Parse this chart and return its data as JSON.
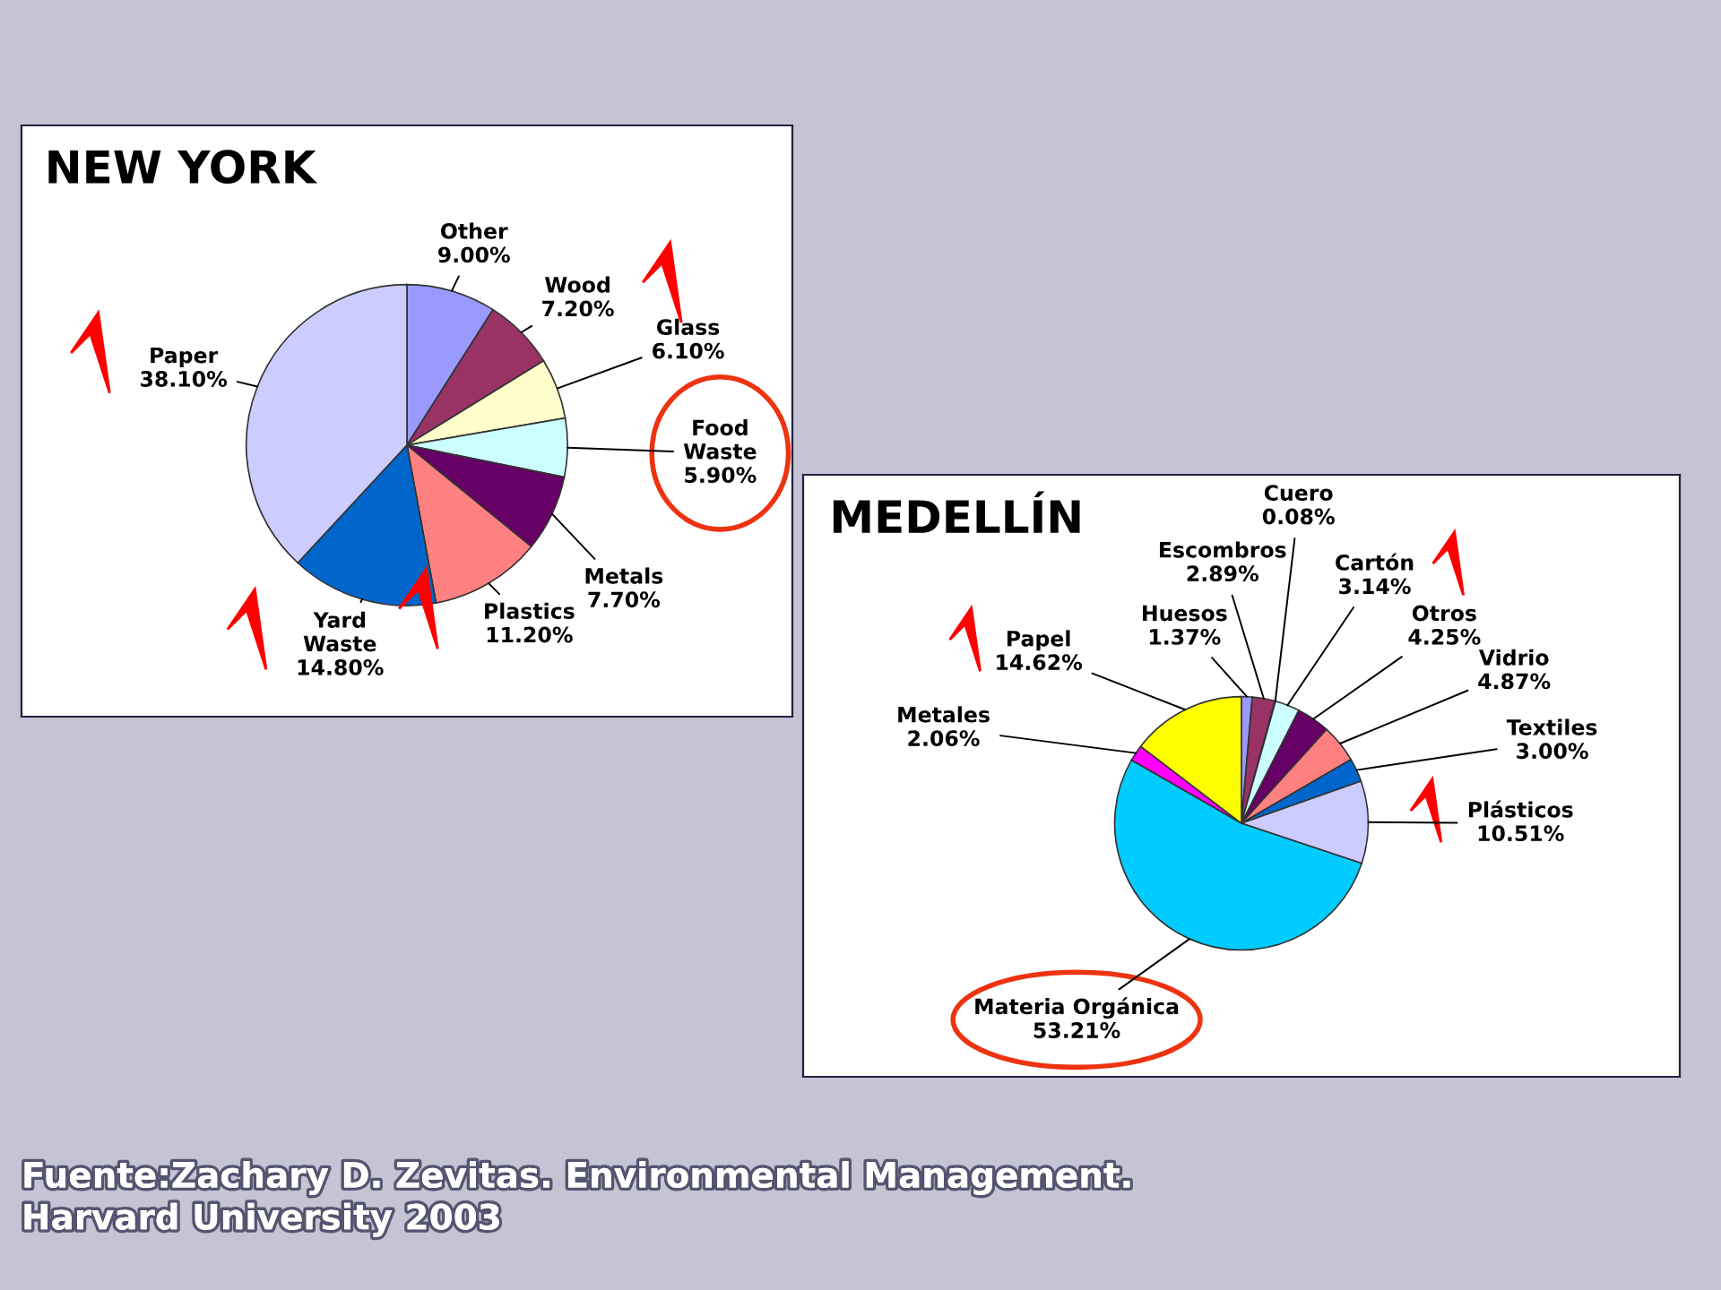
{
  "chart_data": [
    {
      "type": "pie",
      "title": "NEW YORK",
      "categories": [
        "Other",
        "Wood",
        "Glass",
        "Food Waste",
        "Metals",
        "Plastics",
        "Yard Waste",
        "Paper"
      ],
      "values": [
        9.0,
        7.2,
        6.1,
        5.9,
        7.7,
        11.2,
        14.8,
        38.1
      ],
      "value_labels": [
        "9.00%",
        "7.20%",
        "6.10%",
        "5.90%",
        "7.70%",
        "11.20%",
        "14.80%",
        "38.10%"
      ],
      "colors": [
        "#9999ff",
        "#993366",
        "#ffffcc",
        "#ccffff",
        "#660066",
        "#ff8080",
        "#0066cc",
        "#ccccff"
      ]
    },
    {
      "type": "pie",
      "title": "MEDELLÍN",
      "categories": [
        "Huesos",
        "Escombros",
        "Cuero",
        "Cartón",
        "Otros",
        "Vidrio",
        "Textiles",
        "Plásticos",
        "Materia Orgánica",
        "Metales",
        "Papel"
      ],
      "values": [
        1.37,
        2.89,
        0.08,
        3.14,
        4.25,
        4.87,
        3.0,
        10.51,
        53.21,
        2.06,
        14.62
      ],
      "value_labels": [
        "1.37%",
        "2.89%",
        "0.08%",
        "3.14%",
        "4.25%",
        "4.87%",
        "3.00%",
        "10.51%",
        "53.21%",
        "2.06%",
        "14.62%"
      ],
      "colors": [
        "#9999ff",
        "#993366",
        "#ffffcc",
        "#ccffff",
        "#660066",
        "#ff8080",
        "#0066cc",
        "#ccccff",
        "#00ccff",
        "#ff00ff",
        "#ffff00"
      ],
      "annotations": [
        "Fuente:Zachary D. Zevitas. Environmental Management.\nHarvard University 2003"
      ]
    }
  ]
}
